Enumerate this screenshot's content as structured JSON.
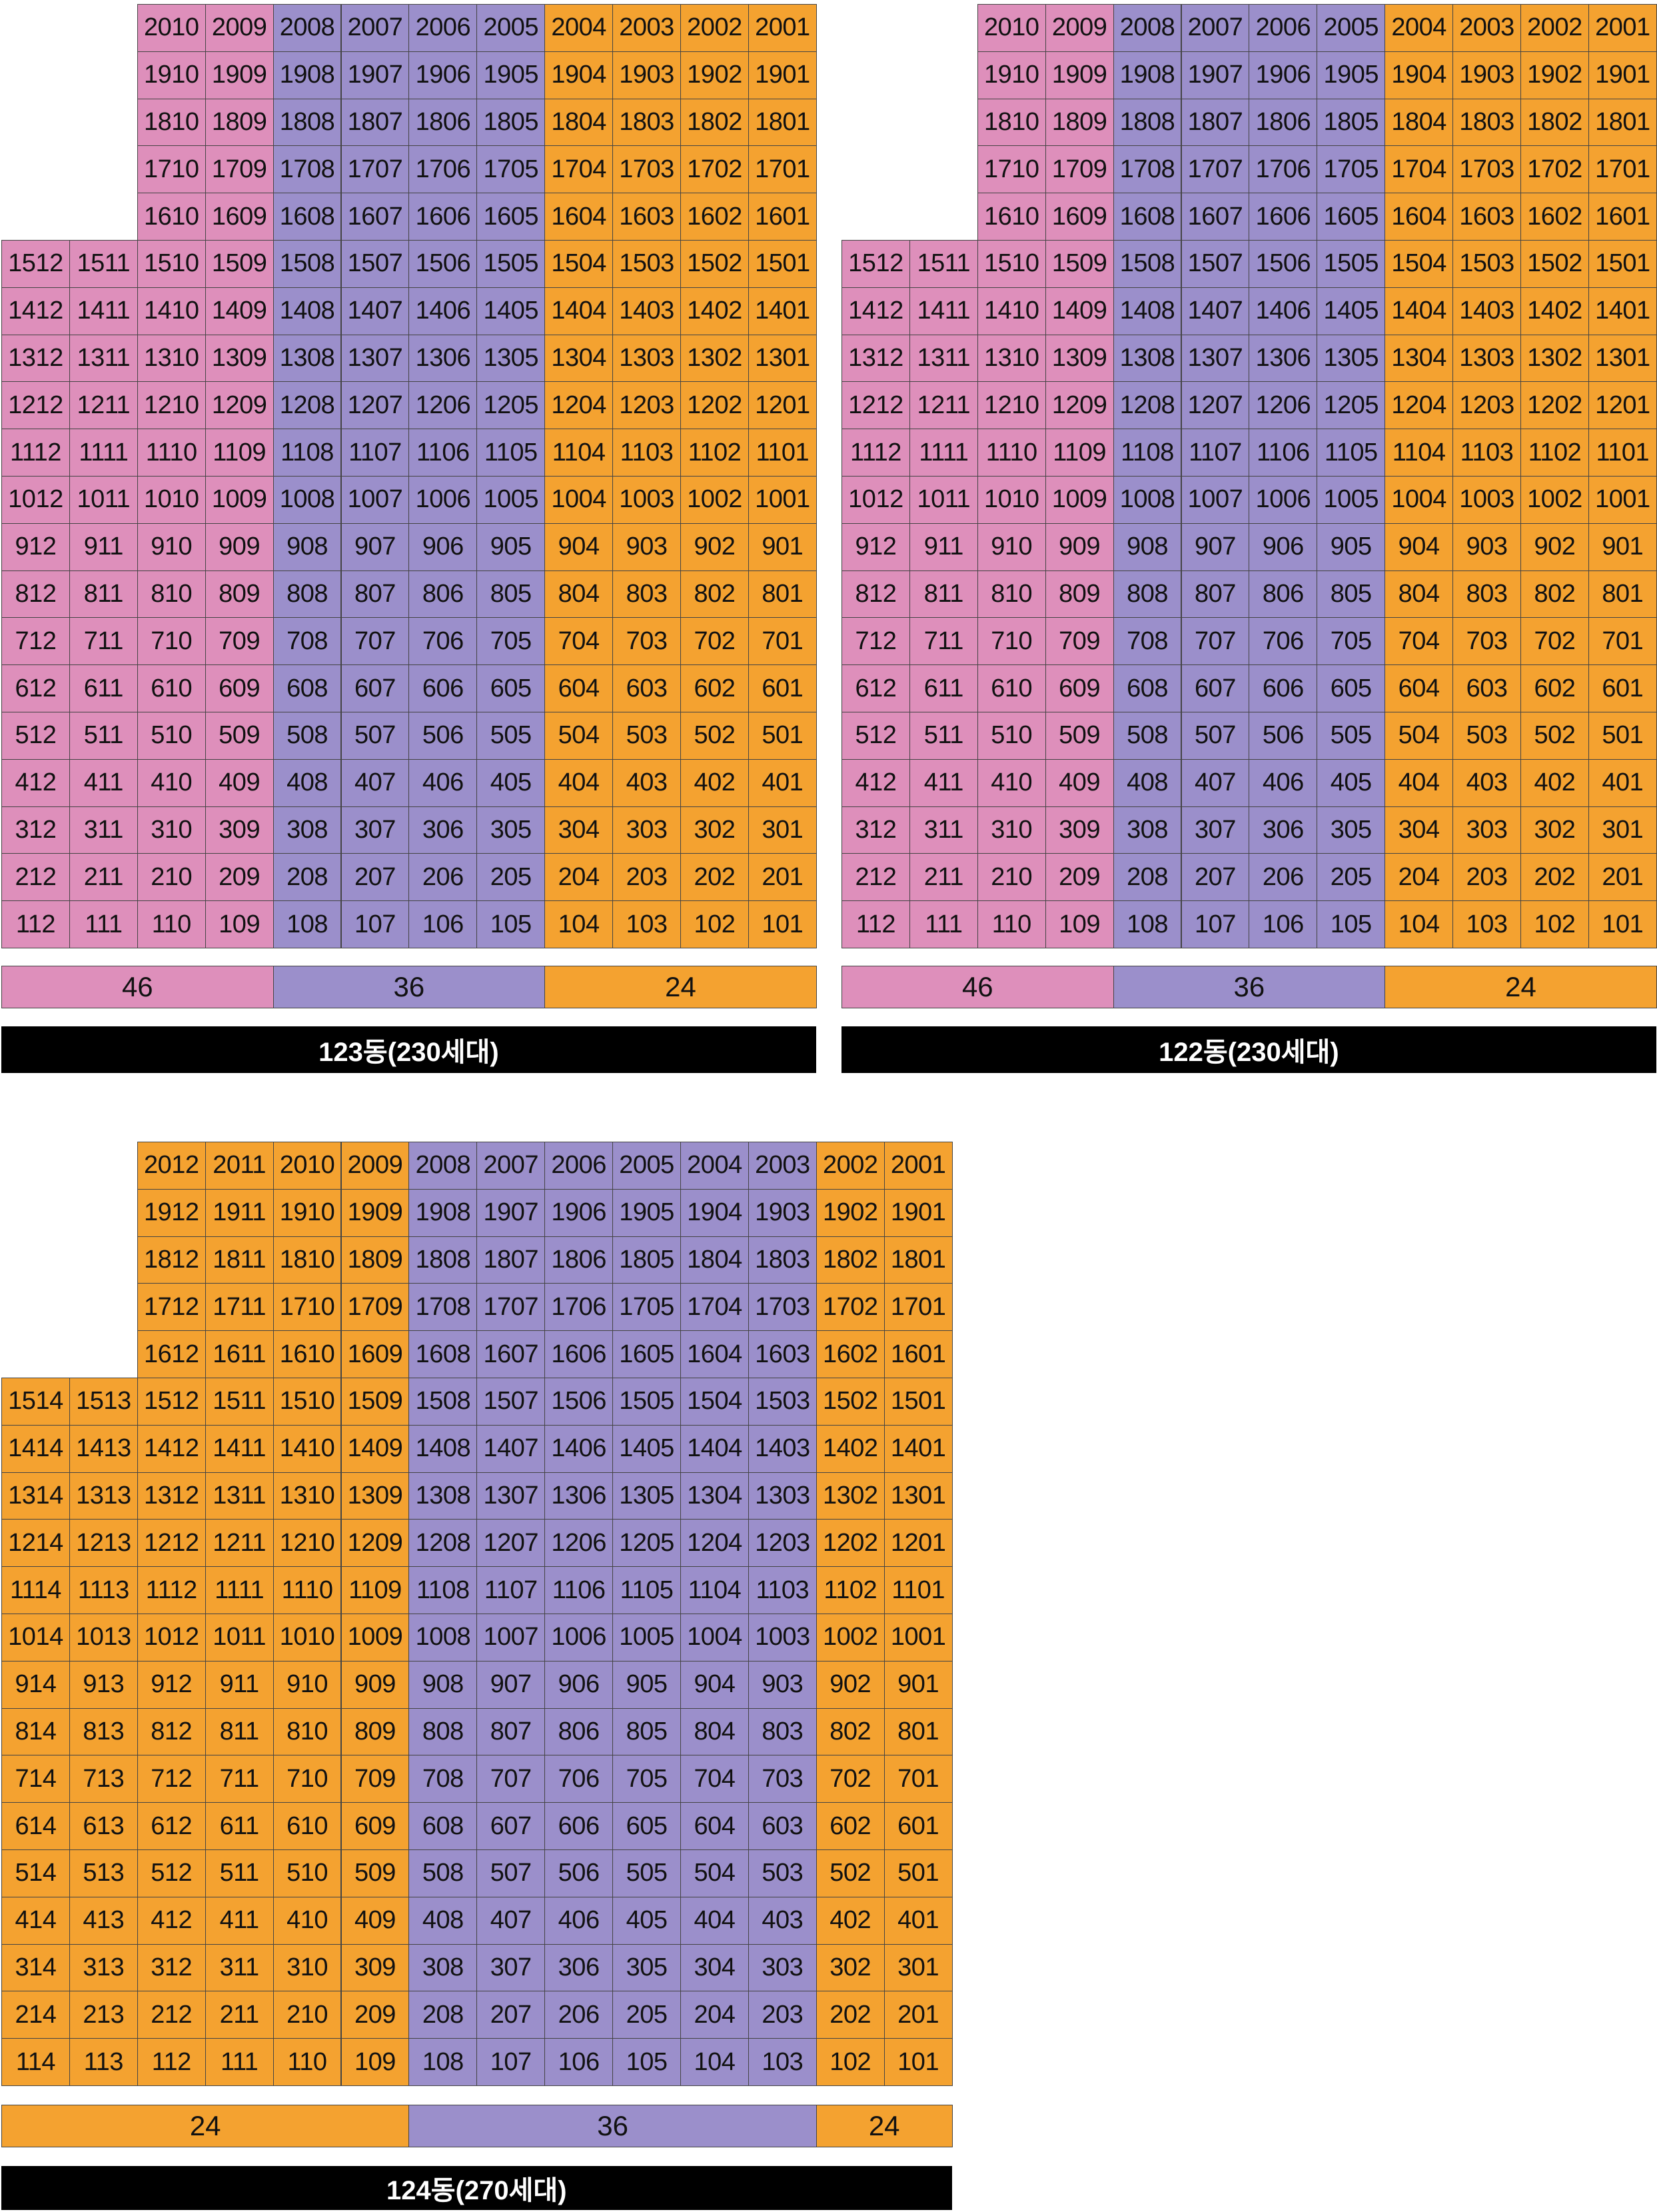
{
  "colors": {
    "pink": "#de8fbb",
    "purple": "#9b8fcb",
    "orange": "#f4a230"
  },
  "buildings": [
    {
      "id": "b123",
      "title": "123동(230세대)",
      "cols": [
        "12",
        "11",
        "10",
        "09",
        "08",
        "07",
        "06",
        "05",
        "04",
        "03",
        "02",
        "01"
      ],
      "col_colors": [
        "pink",
        "pink",
        "pink",
        "pink",
        "purple",
        "purple",
        "purple",
        "purple",
        "orange",
        "orange",
        "orange",
        "orange"
      ],
      "floors": [
        20,
        19,
        18,
        17,
        16,
        15,
        14,
        13,
        12,
        11,
        10,
        9,
        8,
        7,
        6,
        5,
        4,
        3,
        2,
        1
      ],
      "short_cols": 2,
      "short_floors": [
        20,
        19,
        18,
        17,
        16
      ],
      "summary": [
        {
          "label": "46",
          "color": "pink",
          "span": 4
        },
        {
          "label": "36",
          "color": "purple",
          "span": 4
        },
        {
          "label": "24",
          "color": "orange",
          "span": 4
        }
      ]
    },
    {
      "id": "b122",
      "title": "122동(230세대)",
      "cols": [
        "12",
        "11",
        "10",
        "09",
        "08",
        "07",
        "06",
        "05",
        "04",
        "03",
        "02",
        "01"
      ],
      "col_colors": [
        "pink",
        "pink",
        "pink",
        "pink",
        "purple",
        "purple",
        "purple",
        "purple",
        "orange",
        "orange",
        "orange",
        "orange"
      ],
      "floors": [
        20,
        19,
        18,
        17,
        16,
        15,
        14,
        13,
        12,
        11,
        10,
        9,
        8,
        7,
        6,
        5,
        4,
        3,
        2,
        1
      ],
      "short_cols": 2,
      "short_floors": [
        20,
        19,
        18,
        17,
        16
      ],
      "summary": [
        {
          "label": "46",
          "color": "pink",
          "span": 4
        },
        {
          "label": "36",
          "color": "purple",
          "span": 4
        },
        {
          "label": "24",
          "color": "orange",
          "span": 4
        }
      ]
    },
    {
      "id": "b124",
      "title": "124동(270세대)",
      "cols": [
        "14",
        "13",
        "12",
        "11",
        "10",
        "09",
        "08",
        "07",
        "06",
        "05",
        "04",
        "03",
        "02",
        "01"
      ],
      "col_colors": [
        "orange",
        "orange",
        "orange",
        "orange",
        "orange",
        "orange",
        "purple",
        "purple",
        "purple",
        "purple",
        "purple",
        "purple",
        "orange",
        "orange"
      ],
      "floors": [
        20,
        19,
        18,
        17,
        16,
        15,
        14,
        13,
        12,
        11,
        10,
        9,
        8,
        7,
        6,
        5,
        4,
        3,
        2,
        1
      ],
      "short_cols": 2,
      "short_floors": [
        20,
        19,
        18,
        17,
        16
      ],
      "summary": [
        {
          "label": "24",
          "color": "orange",
          "span": 6
        },
        {
          "label": "36",
          "color": "purple",
          "span": 6
        },
        {
          "label": "24",
          "color": "orange",
          "span": 2
        }
      ]
    }
  ]
}
